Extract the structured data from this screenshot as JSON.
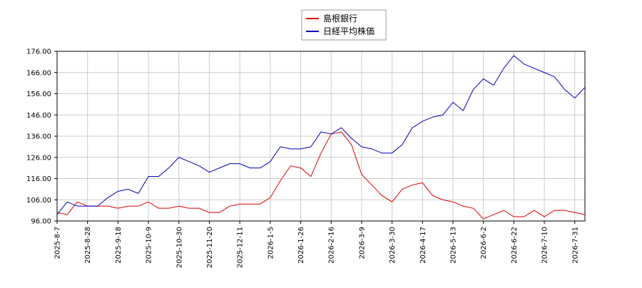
{
  "chart_data": {
    "type": "line",
    "categories": [
      "2025-8-7",
      null,
      null,
      "2025-8-28",
      null,
      null,
      "2025-9-18",
      null,
      null,
      "2025-10-9",
      null,
      null,
      "2025-10-30",
      null,
      null,
      "2025-11-20",
      null,
      null,
      "2025-12-11",
      null,
      null,
      "2026-1-5",
      null,
      null,
      "2026-1-26",
      null,
      null,
      "2026-2-16",
      null,
      null,
      "2026-3-9",
      null,
      null,
      "2026-3-30",
      null,
      null,
      "2026-4-17",
      null,
      null,
      "2026-5-13",
      null,
      null,
      "2026-6-2",
      null,
      null,
      "2026-6-22",
      null,
      null,
      "2026-7-10",
      null,
      null,
      "2026-7-31",
      null
    ],
    "series": [
      {
        "name": "島根銀行",
        "color": "#dd0000",
        "values": [
          100,
          99,
          105,
          103,
          103,
          103,
          102,
          103,
          103,
          105,
          102,
          102,
          103,
          102,
          102,
          100,
          100,
          103,
          104,
          104,
          104,
          107,
          115,
          122,
          121,
          117,
          128,
          137,
          138,
          132,
          118,
          113,
          108,
          105,
          111,
          113,
          114,
          108,
          106,
          105,
          103,
          102,
          97,
          99,
          101,
          98,
          98,
          101,
          98,
          101,
          101,
          100,
          99
        ]
      },
      {
        "name": "日経平均株価",
        "color": "#0000bb",
        "values": [
          99,
          105,
          103,
          103,
          103,
          107,
          110,
          111,
          109,
          117,
          117,
          121,
          126,
          124,
          122,
          119,
          121,
          123,
          123,
          121,
          121,
          124,
          131,
          130,
          130,
          131,
          138,
          137,
          140,
          135,
          131,
          130,
          128,
          128,
          132,
          140,
          143,
          145,
          146,
          152,
          148,
          158,
          163,
          160,
          168,
          174,
          170,
          168,
          166,
          164,
          158,
          154,
          159
        ]
      }
    ],
    "ylim": [
      96,
      176
    ],
    "yticks": [
      {
        "value": 96,
        "label": "96.00"
      },
      {
        "value": 106,
        "label": "106.00"
      },
      {
        "value": 116,
        "label": "116.00"
      },
      {
        "value": 126,
        "label": "126.00"
      },
      {
        "value": 136,
        "label": "136.00"
      },
      {
        "value": 146,
        "label": "146.00"
      },
      {
        "value": 156,
        "label": "156.00"
      },
      {
        "value": 166,
        "label": "166.00"
      },
      {
        "value": 176,
        "label": "176.00"
      }
    ],
    "grid": true,
    "legend": "top"
  }
}
